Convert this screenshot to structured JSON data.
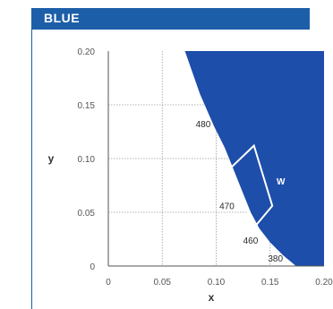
{
  "panel": {
    "title": "BLUE",
    "colors": {
      "header": "#1d5ea8",
      "region": "#1d4eaa",
      "grid": "#9a9a9a",
      "white_box": "#ffffff"
    }
  },
  "chart_data": {
    "type": "area",
    "xlabel": "x",
    "ylabel": "y",
    "xlim": [
      0,
      0.2
    ],
    "ylim": [
      0,
      0.2
    ],
    "grid": true,
    "xticks": [
      {
        "value": 0,
        "label": "0"
      },
      {
        "value": 0.05,
        "label": "0.05"
      },
      {
        "value": 0.1,
        "label": "0.10"
      },
      {
        "value": 0.15,
        "label": "0.15"
      },
      {
        "value": 0.2,
        "label": "0.20"
      }
    ],
    "yticks": [
      {
        "value": 0,
        "label": "0"
      },
      {
        "value": 0.05,
        "label": "0.05"
      },
      {
        "value": 0.1,
        "label": "0.10"
      },
      {
        "value": 0.15,
        "label": "0.15"
      },
      {
        "value": 0.2,
        "label": "0.20"
      }
    ],
    "region_boundary": [
      [
        0.071,
        0.2
      ],
      [
        0.085,
        0.16
      ],
      [
        0.098,
        0.13
      ],
      [
        0.108,
        0.11
      ],
      [
        0.116,
        0.09
      ],
      [
        0.124,
        0.07
      ],
      [
        0.132,
        0.05
      ],
      [
        0.14,
        0.035
      ],
      [
        0.15,
        0.022
      ],
      [
        0.162,
        0.01
      ],
      [
        0.174,
        0.0
      ]
    ],
    "wavelength_labels": [
      {
        "text": "480",
        "x": 0.081,
        "y": 0.129
      },
      {
        "text": "470",
        "x": 0.103,
        "y": 0.053
      },
      {
        "text": "460",
        "x": 0.125,
        "y": 0.021
      },
      {
        "text": "380",
        "x": 0.148,
        "y": 0.004
      }
    ],
    "white_box": {
      "label": "W",
      "points": [
        [
          0.109,
          0.087
        ],
        [
          0.135,
          0.112
        ],
        [
          0.152,
          0.056
        ],
        [
          0.137,
          0.038
        ]
      ],
      "label_at": [
        0.156,
        0.076
      ]
    }
  }
}
